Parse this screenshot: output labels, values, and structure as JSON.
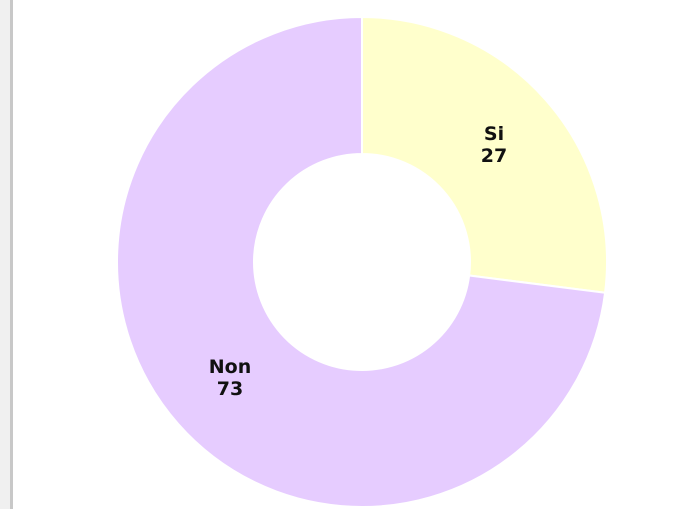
{
  "chart_data": {
    "type": "donut",
    "categories": [
      "Si",
      "Non"
    ],
    "values": [
      27,
      73
    ],
    "colors": [
      "#ffffcc",
      "#e6ccff"
    ]
  }
}
